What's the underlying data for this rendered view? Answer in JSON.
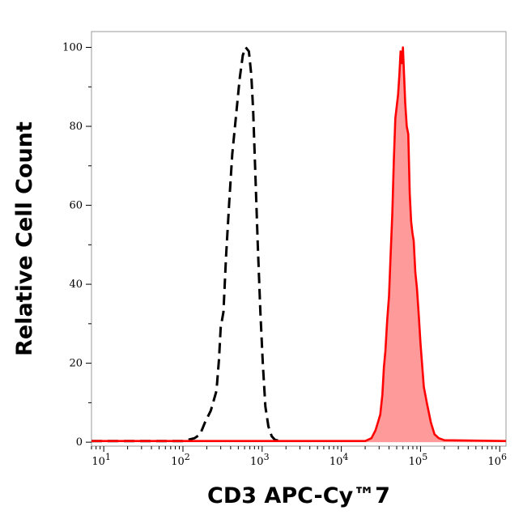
{
  "chart_data": {
    "type": "area",
    "title": "",
    "xlabel": "CD3 APC-Cy™7",
    "ylabel": "Relative Cell Count",
    "x_scale": "log",
    "xlim": [
      7,
      1200000
    ],
    "ylim": [
      -1,
      104
    ],
    "x_ticks": [
      {
        "value": 10,
        "base": "10",
        "exp": "1"
      },
      {
        "value": 100,
        "base": "10",
        "exp": "2"
      },
      {
        "value": 1000,
        "base": "10",
        "exp": "3"
      },
      {
        "value": 10000,
        "base": "10",
        "exp": "4"
      },
      {
        "value": 100000,
        "base": "10",
        "exp": "5"
      },
      {
        "value": 1000000,
        "base": "10",
        "exp": "6"
      }
    ],
    "y_ticks": [
      0,
      20,
      40,
      60,
      80,
      100
    ],
    "grid": false,
    "colors": {
      "isotype": "#000000",
      "stained_line": "#ff0000",
      "stained_fill": "#ff9a9a"
    },
    "series": [
      {
        "style": "dashed-black",
        "points": [
          [
            7,
            0.3
          ],
          [
            100,
            0.3
          ],
          [
            140,
            1
          ],
          [
            165,
            2
          ],
          [
            190,
            5
          ],
          [
            225,
            8
          ],
          [
            265,
            13
          ],
          [
            285,
            21
          ],
          [
            300,
            29
          ],
          [
            325,
            33
          ],
          [
            350,
            47
          ],
          [
            385,
            61
          ],
          [
            420,
            73
          ],
          [
            470,
            83
          ],
          [
            520,
            92
          ],
          [
            570,
            98
          ],
          [
            620,
            100
          ],
          [
            680,
            99
          ],
          [
            730,
            93
          ],
          [
            770,
            84
          ],
          [
            820,
            68
          ],
          [
            880,
            50
          ],
          [
            950,
            33
          ],
          [
            1020,
            20
          ],
          [
            1100,
            9
          ],
          [
            1200,
            4
          ],
          [
            1320,
            1.5
          ],
          [
            1450,
            0.6
          ],
          [
            1700,
            0.3
          ]
        ]
      },
      {
        "style": "filled-red",
        "points": [
          [
            7,
            0.3
          ],
          [
            20000,
            0.3
          ],
          [
            24000,
            1
          ],
          [
            27000,
            3
          ],
          [
            29000,
            5
          ],
          [
            31000,
            7
          ],
          [
            33000,
            12
          ],
          [
            34500,
            19
          ],
          [
            36000,
            23
          ],
          [
            38000,
            31
          ],
          [
            40000,
            37
          ],
          [
            42000,
            48
          ],
          [
            44000,
            58
          ],
          [
            46000,
            71
          ],
          [
            48000,
            82
          ],
          [
            50000,
            85
          ],
          [
            52000,
            88
          ],
          [
            54000,
            93
          ],
          [
            56000,
            99
          ],
          [
            58000,
            96
          ],
          [
            60000,
            100
          ],
          [
            62000,
            93
          ],
          [
            64000,
            86
          ],
          [
            67000,
            80
          ],
          [
            70000,
            78
          ],
          [
            73000,
            63
          ],
          [
            76000,
            56
          ],
          [
            79000,
            53
          ],
          [
            82000,
            51
          ],
          [
            86000,
            43
          ],
          [
            90000,
            39
          ],
          [
            95000,
            32
          ],
          [
            100000,
            25
          ],
          [
            110000,
            14
          ],
          [
            120000,
            10
          ],
          [
            135000,
            5
          ],
          [
            150000,
            2
          ],
          [
            170000,
            1
          ],
          [
            200000,
            0.5
          ],
          [
            1200000,
            0.3
          ]
        ]
      }
    ]
  }
}
